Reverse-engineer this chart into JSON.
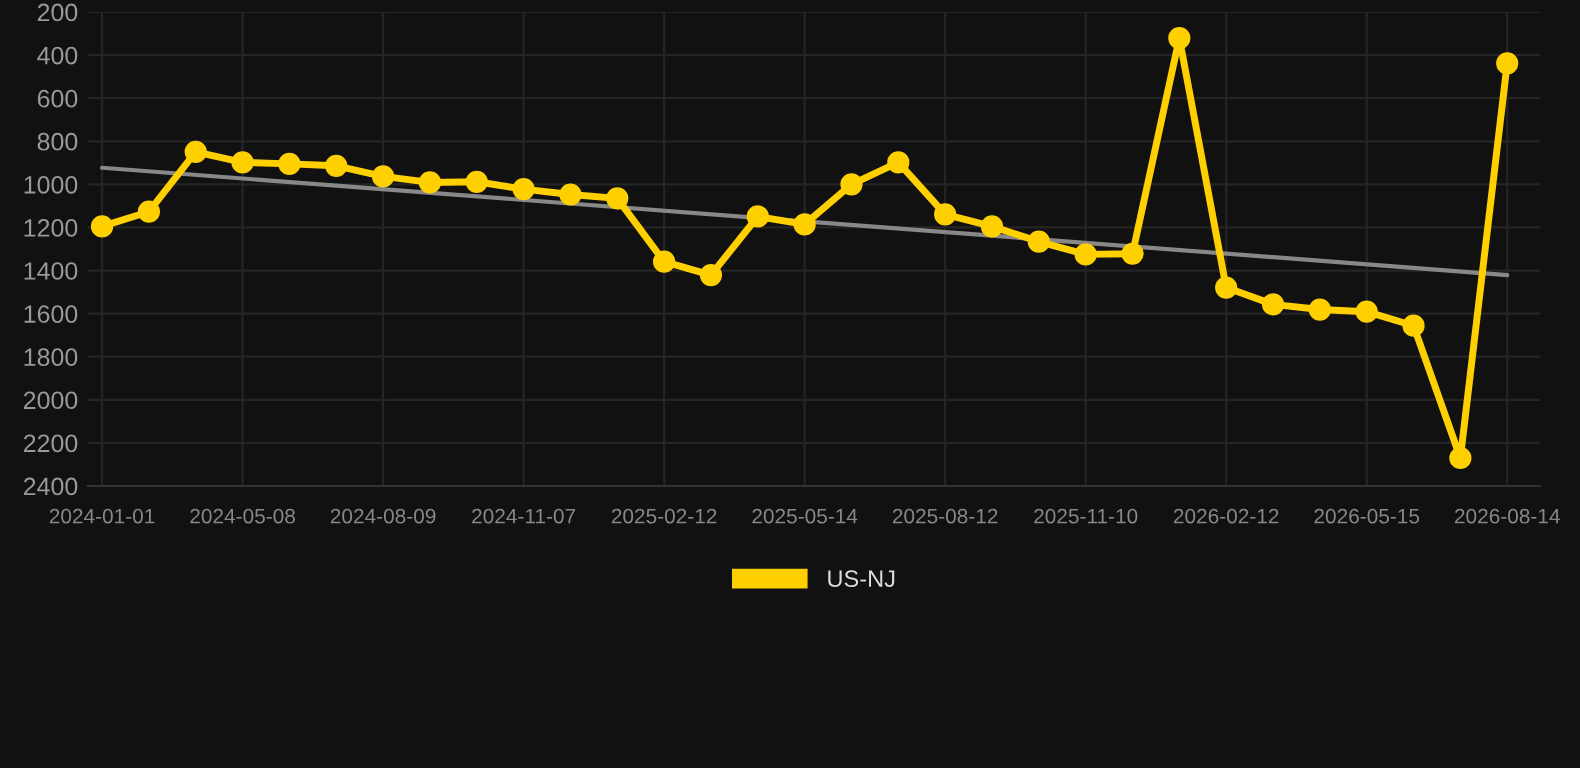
{
  "chart_data": {
    "type": "line",
    "categories": [
      "2024-01-01",
      null,
      null,
      "2024-05-08",
      null,
      null,
      "2024-08-09",
      null,
      null,
      "2024-11-07",
      null,
      null,
      "2025-02-12",
      null,
      null,
      "2025-05-14",
      null,
      null,
      "2025-08-12",
      null,
      null,
      "2025-11-10",
      null,
      null,
      "2026-02-12",
      null,
      null,
      "2026-05-15",
      null,
      null,
      "2026-08-14"
    ],
    "series": [
      {
        "name": "US-NJ",
        "color": "#ffd000",
        "marker": "circle",
        "values": [
          1195,
          1127,
          849,
          898,
          905,
          914,
          963,
          991,
          988,
          1022,
          1047,
          1065,
          1359,
          1421,
          1149,
          1186,
          1000,
          898,
          1139,
          1195,
          1266,
          1325,
          1322,
          321,
          1479,
          1557,
          1581,
          1591,
          1656,
          2270,
          438
        ]
      },
      {
        "type": "line",
        "color": "#888888",
        "marker": "none",
        "values": [
          923,
          null,
          null,
          null,
          null,
          null,
          null,
          null,
          null,
          null,
          null,
          null,
          null,
          null,
          null,
          null,
          null,
          null,
          null,
          null,
          null,
          null,
          null,
          null,
          null,
          null,
          null,
          null,
          null,
          null,
          1421
        ]
      }
    ],
    "ylim": [
      2400,
      200
    ],
    "yticks": [
      200,
      400,
      600,
      800,
      1000,
      1200,
      1400,
      1600,
      1800,
      2000,
      2200,
      2400
    ],
    "grid": true,
    "legend": "bottom",
    "line_style": "solid"
  }
}
